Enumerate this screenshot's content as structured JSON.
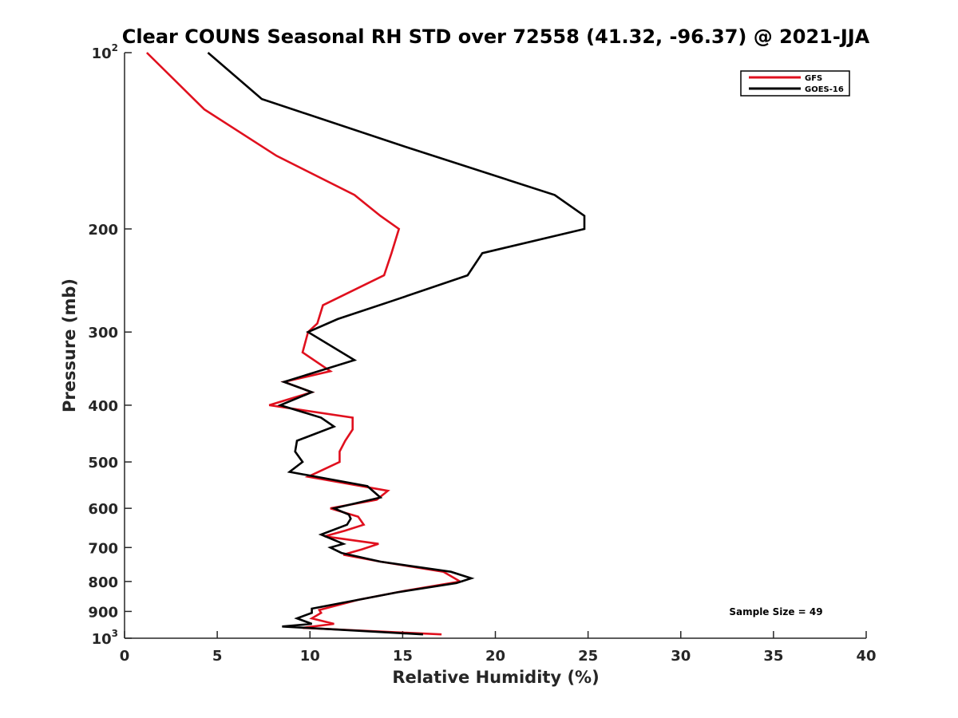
{
  "chart_data": {
    "type": "line",
    "title": "Clear COUNS Seasonal RH STD over 72558 (41.32, -96.37) @ 2021-JJA",
    "xlabel": "Relative Humidity (%)",
    "ylabel": "Pressure (mb)",
    "xlim": [
      0,
      40
    ],
    "ylim": [
      100,
      1000
    ],
    "yscale": "log",
    "y_reversed": true,
    "xticks": [
      0,
      5,
      10,
      15,
      20,
      25,
      30,
      35,
      40
    ],
    "xtick_labels": [
      "0",
      "5",
      "10",
      "15",
      "20",
      "25",
      "30",
      "35",
      "40"
    ],
    "yticks": [
      {
        "value": 100,
        "base": "10",
        "exp": "2"
      },
      {
        "value": 200,
        "label": "200"
      },
      {
        "value": 300,
        "label": "300"
      },
      {
        "value": 400,
        "label": "400"
      },
      {
        "value": 500,
        "label": "500"
      },
      {
        "value": 600,
        "label": "600"
      },
      {
        "value": 700,
        "label": "700"
      },
      {
        "value": 800,
        "label": "800"
      },
      {
        "value": 900,
        "label": "900"
      },
      {
        "value": 1000,
        "base": "10",
        "exp": "3"
      }
    ],
    "grid": false,
    "legend_position": "top-right",
    "annotation": "Sample Size = 49",
    "series": [
      {
        "name": "GFS",
        "color": "#e0101e",
        "points": [
          [
            1.2,
            100
          ],
          [
            4.3,
            125
          ],
          [
            8.2,
            150
          ],
          [
            12.4,
            175
          ],
          [
            13.8,
            190
          ],
          [
            14.8,
            200
          ],
          [
            14.4,
            220
          ],
          [
            14.0,
            240
          ],
          [
            10.7,
            270
          ],
          [
            10.4,
            290
          ],
          [
            9.9,
            300
          ],
          [
            9.6,
            325
          ],
          [
            11.1,
            350
          ],
          [
            8.6,
            365
          ],
          [
            10.1,
            380
          ],
          [
            7.8,
            400
          ],
          [
            12.3,
            420
          ],
          [
            12.3,
            440
          ],
          [
            11.9,
            460
          ],
          [
            11.6,
            480
          ],
          [
            11.6,
            500
          ],
          [
            9.9,
            530
          ],
          [
            14.2,
            560
          ],
          [
            13.6,
            580
          ],
          [
            11.1,
            600
          ],
          [
            12.6,
            620
          ],
          [
            12.9,
            640
          ],
          [
            11.9,
            655
          ],
          [
            10.8,
            670
          ],
          [
            13.7,
            690
          ],
          [
            12.8,
            705
          ],
          [
            11.8,
            720
          ],
          [
            13.8,
            740
          ],
          [
            17.2,
            770
          ],
          [
            18.1,
            800
          ],
          [
            15.1,
            830
          ],
          [
            12.6,
            860
          ],
          [
            10.5,
            895
          ],
          [
            10.6,
            905
          ],
          [
            10.1,
            925
          ],
          [
            11.3,
            945
          ],
          [
            9.6,
            960
          ],
          [
            17.1,
            985
          ]
        ]
      },
      {
        "name": "GOES-16",
        "color": "#000000",
        "points": [
          [
            4.5,
            100
          ],
          [
            7.4,
            120
          ],
          [
            15.2,
            145
          ],
          [
            23.2,
            175
          ],
          [
            24.8,
            190
          ],
          [
            24.8,
            200
          ],
          [
            19.3,
            220
          ],
          [
            18.5,
            240
          ],
          [
            14.5,
            265
          ],
          [
            11.5,
            285
          ],
          [
            9.9,
            300
          ],
          [
            12.4,
            335
          ],
          [
            8.6,
            365
          ],
          [
            10.1,
            380
          ],
          [
            8.4,
            400
          ],
          [
            10.6,
            420
          ],
          [
            11.3,
            435
          ],
          [
            9.3,
            460
          ],
          [
            9.2,
            480
          ],
          [
            9.6,
            500
          ],
          [
            8.9,
            520
          ],
          [
            13.1,
            550
          ],
          [
            13.8,
            575
          ],
          [
            11.3,
            600
          ],
          [
            12.1,
            615
          ],
          [
            12.2,
            625
          ],
          [
            12.0,
            640
          ],
          [
            10.6,
            665
          ],
          [
            11.8,
            690
          ],
          [
            11.1,
            700
          ],
          [
            11.7,
            715
          ],
          [
            13.8,
            740
          ],
          [
            17.6,
            770
          ],
          [
            18.7,
            790
          ],
          [
            17.9,
            805
          ],
          [
            14.7,
            835
          ],
          [
            12.6,
            860
          ],
          [
            10.1,
            890
          ],
          [
            10.1,
            905
          ],
          [
            9.3,
            925
          ],
          [
            10.1,
            945
          ],
          [
            8.5,
            955
          ],
          [
            16.1,
            985
          ]
        ]
      }
    ]
  }
}
